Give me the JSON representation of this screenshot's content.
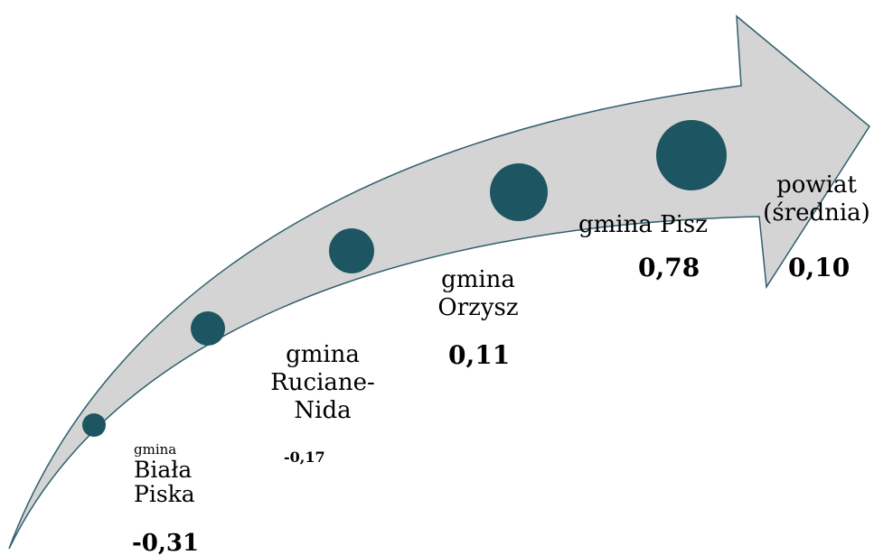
{
  "colors": {
    "arrow_fill": "#d4d4d4",
    "arrow_stroke": "#2f5f6c",
    "dot_fill": "#1d5562"
  },
  "items": [
    {
      "label_lines": [
        "gmina",
        "Biała",
        "Piska"
      ],
      "value": "-0,31"
    },
    {
      "label_lines": [
        "gmina",
        "Ruciane-",
        "Nida"
      ],
      "value": "-0,17"
    },
    {
      "label_lines": [
        "gmina",
        "Orzysz"
      ],
      "value": "0,11"
    },
    {
      "label_lines": [
        "gmina Pisz"
      ],
      "value": "0,78"
    },
    {
      "label_lines": [
        "powiat",
        "(średnia)"
      ],
      "value": "0,10"
    }
  ]
}
